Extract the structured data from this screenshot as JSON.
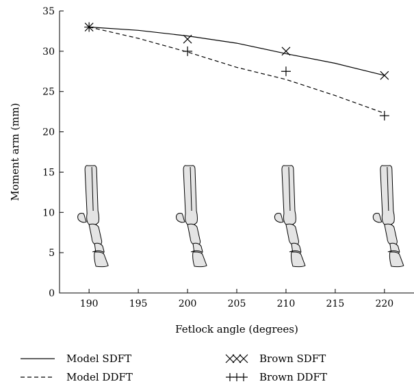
{
  "chart_data": {
    "type": "line",
    "title": "",
    "xlabel": "Fetlock angle (degrees)",
    "ylabel": "Moment arm (mm)",
    "xlim": [
      187,
      223
    ],
    "ylim": [
      0,
      35
    ],
    "xticks": [
      190,
      195,
      200,
      205,
      210,
      215,
      220
    ],
    "yticks": [
      0,
      5,
      10,
      15,
      20,
      25,
      30,
      35
    ],
    "grid": false,
    "legend_position": "bottom",
    "series": [
      {
        "name": "Model SDFT",
        "kind": "line",
        "style": "solid",
        "x": [
          190,
          195,
          200,
          205,
          210,
          215,
          220
        ],
        "y": [
          33.0,
          32.6,
          31.9,
          31.0,
          29.7,
          28.5,
          27.0
        ]
      },
      {
        "name": "Model DDFT",
        "kind": "line",
        "style": "dashed",
        "x": [
          190,
          195,
          200,
          205,
          210,
          215,
          220
        ],
        "y": [
          33.0,
          31.6,
          29.9,
          28.0,
          26.5,
          24.5,
          22.3
        ]
      },
      {
        "name": "Brown SDFT",
        "kind": "scatter",
        "marker": "x",
        "x": [
          190,
          200,
          210,
          220
        ],
        "y": [
          33.0,
          31.5,
          30.0,
          27.0
        ]
      },
      {
        "name": "Brown DDFT",
        "kind": "scatter",
        "marker": "+",
        "x": [
          190,
          200,
          210,
          220
        ],
        "y": [
          33.0,
          30.0,
          27.5,
          22.0
        ]
      }
    ],
    "illustrations": [
      {
        "icon": "horse-limb-bone-icon",
        "x": 190
      },
      {
        "icon": "horse-limb-bone-icon",
        "x": 200
      },
      {
        "icon": "horse-limb-bone-icon",
        "x": 210
      },
      {
        "icon": "horse-limb-bone-icon",
        "x": 220
      }
    ]
  },
  "legend": {
    "items": [
      {
        "label": "Model SDFT",
        "symbol": "solid-line"
      },
      {
        "label": "Model DDFT",
        "symbol": "dashed-line"
      },
      {
        "label": "Brown SDFT",
        "symbol": "x-markers"
      },
      {
        "label": "Brown DDFT",
        "symbol": "plus-markers"
      }
    ]
  }
}
